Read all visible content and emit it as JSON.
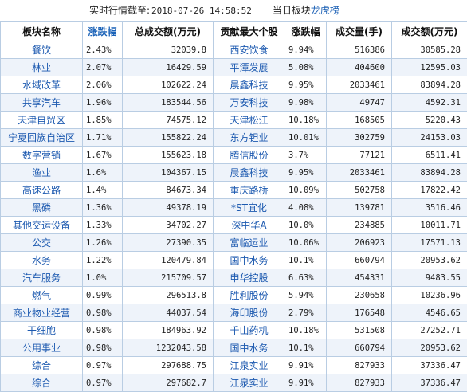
{
  "caption": {
    "prefix": "实时行情截至:",
    "timestamp": "2018-07-26 14:58:52",
    "label": "当日板块",
    "highlight": "龙虎榜"
  },
  "headers": [
    "板块名称",
    "涨跌幅",
    "总成交额(万元)",
    "贡献最大个股",
    "涨跌幅",
    "成交量(手)",
    "成交额(万元)"
  ],
  "rows": [
    {
      "sector": "餐饮",
      "change": "2.43%",
      "amount": "32039.8",
      "stock": "西安饮食",
      "stock_change": "9.94%",
      "volume": "516386",
      "stock_amount": "30585.28"
    },
    {
      "sector": "林业",
      "change": "2.07%",
      "amount": "16429.59",
      "stock": "平潭发展",
      "stock_change": "5.08%",
      "volume": "404600",
      "stock_amount": "12595.03"
    },
    {
      "sector": "水域改革",
      "change": "2.06%",
      "amount": "102622.24",
      "stock": "晨鑫科技",
      "stock_change": "9.95%",
      "volume": "2033461",
      "stock_amount": "83894.28"
    },
    {
      "sector": "共享汽车",
      "change": "1.96%",
      "amount": "183544.56",
      "stock": "万安科技",
      "stock_change": "9.98%",
      "volume": "49747",
      "stock_amount": "4592.31"
    },
    {
      "sector": "天津自贸区",
      "change": "1.85%",
      "amount": "74575.12",
      "stock": "天津松江",
      "stock_change": "10.18%",
      "volume": "168505",
      "stock_amount": "5220.43"
    },
    {
      "sector": "宁夏回族自治区",
      "change": "1.71%",
      "amount": "155822.24",
      "stock": "东方钽业",
      "stock_change": "10.01%",
      "volume": "302759",
      "stock_amount": "24153.03"
    },
    {
      "sector": "数字营销",
      "change": "1.67%",
      "amount": "155623.18",
      "stock": "腾信股份",
      "stock_change": "3.7%",
      "volume": "77121",
      "stock_amount": "6511.41"
    },
    {
      "sector": "渔业",
      "change": "1.6%",
      "amount": "104367.15",
      "stock": "晨鑫科技",
      "stock_change": "9.95%",
      "volume": "2033461",
      "stock_amount": "83894.28"
    },
    {
      "sector": "高速公路",
      "change": "1.4%",
      "amount": "84673.34",
      "stock": "重庆路桥",
      "stock_change": "10.09%",
      "volume": "502758",
      "stock_amount": "17822.42"
    },
    {
      "sector": "黑磷",
      "change": "1.36%",
      "amount": "49378.19",
      "stock": "*ST宜化",
      "stock_change": "4.08%",
      "volume": "139781",
      "stock_amount": "3516.46"
    },
    {
      "sector": "其他交运设备",
      "change": "1.33%",
      "amount": "34702.27",
      "stock": "深中华A",
      "stock_change": "10.0%",
      "volume": "234885",
      "stock_amount": "10011.71"
    },
    {
      "sector": "公交",
      "change": "1.26%",
      "amount": "27390.35",
      "stock": "富临运业",
      "stock_change": "10.06%",
      "volume": "206923",
      "stock_amount": "17571.13"
    },
    {
      "sector": "水务",
      "change": "1.22%",
      "amount": "120479.84",
      "stock": "国中水务",
      "stock_change": "10.1%",
      "volume": "660794",
      "stock_amount": "20953.62"
    },
    {
      "sector": "汽车服务",
      "change": "1.0%",
      "amount": "215709.57",
      "stock": "申华控股",
      "stock_change": "6.63%",
      "volume": "454331",
      "stock_amount": "9483.55"
    },
    {
      "sector": "燃气",
      "change": "0.99%",
      "amount": "296513.8",
      "stock": "胜利股份",
      "stock_change": "5.94%",
      "volume": "230658",
      "stock_amount": "10236.96"
    },
    {
      "sector": "商业物业经营",
      "change": "0.98%",
      "amount": "44037.54",
      "stock": "海印股份",
      "stock_change": "2.79%",
      "volume": "176548",
      "stock_amount": "4546.65"
    },
    {
      "sector": "干细胞",
      "change": "0.98%",
      "amount": "184963.92",
      "stock": "千山药机",
      "stock_change": "10.18%",
      "volume": "531508",
      "stock_amount": "27252.71"
    },
    {
      "sector": "公用事业",
      "change": "0.98%",
      "amount": "1232043.58",
      "stock": "国中水务",
      "stock_change": "10.1%",
      "volume": "660794",
      "stock_amount": "20953.62"
    },
    {
      "sector": "综合",
      "change": "0.97%",
      "amount": "297688.75",
      "stock": "江泉实业",
      "stock_change": "9.91%",
      "volume": "827933",
      "stock_amount": "37336.47"
    },
    {
      "sector": "综合",
      "change": "0.97%",
      "amount": "297682.7",
      "stock": "江泉实业",
      "stock_change": "9.91%",
      "volume": "827933",
      "stock_amount": "37336.47"
    }
  ]
}
